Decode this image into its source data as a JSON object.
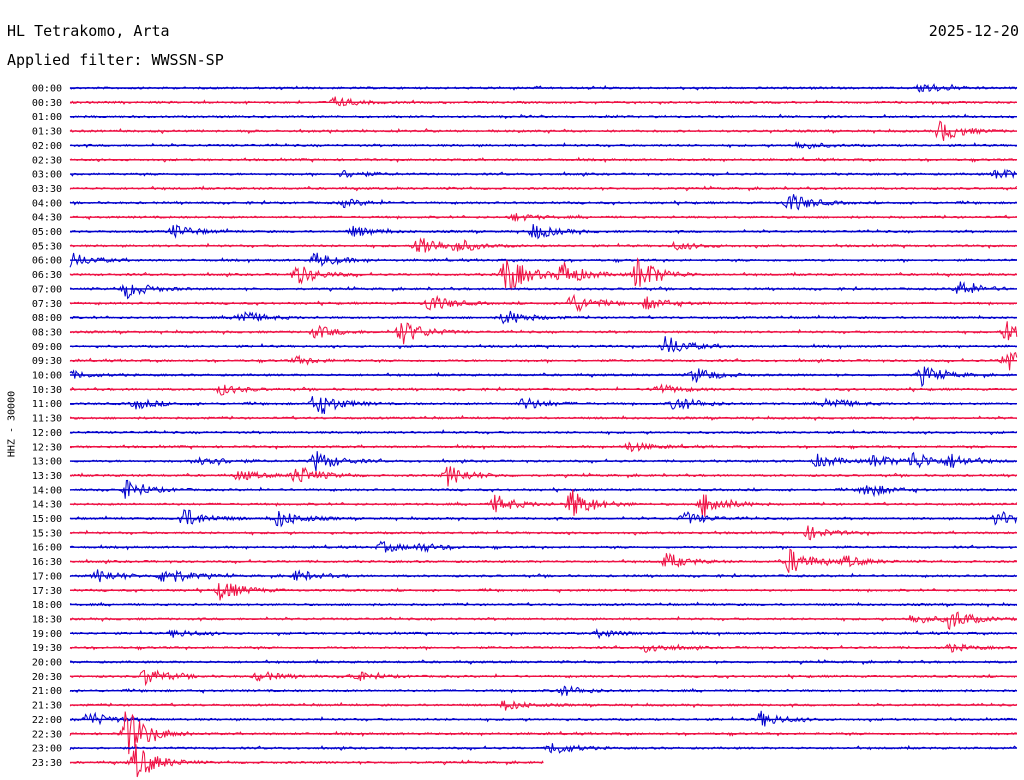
{
  "header": {
    "station": "HL Tetrakomo, Arta",
    "date": "2025-12-20",
    "filter": "Applied filter: WWSSN-SP",
    "channel_label": "HHZ - 30000"
  },
  "colors": {
    "even_trace": "#0000cc",
    "odd_trace": "#ee1144"
  },
  "chart_data": {
    "type": "line",
    "title": "HL Tetrakomo, Arta",
    "subtitle": "Applied filter: WWSSN-SP",
    "ylabel": "HHZ - 30000",
    "xlabel": "",
    "grid": false,
    "legend": "none",
    "row_labels": [
      "00:00",
      "00:30",
      "01:00",
      "01:30",
      "02:00",
      "02:30",
      "03:00",
      "03:30",
      "04:00",
      "04:30",
      "05:00",
      "05:30",
      "06:00",
      "06:30",
      "07:00",
      "07:30",
      "08:00",
      "08:30",
      "09:00",
      "09:30",
      "10:00",
      "10:30",
      "11:00",
      "11:30",
      "12:00",
      "12:30",
      "13:00",
      "13:30",
      "14:00",
      "14:30",
      "15:00",
      "15:30",
      "16:00",
      "16:30",
      "17:00",
      "17:30",
      "18:00",
      "18:30",
      "19:00",
      "19:30",
      "20:00",
      "20:30",
      "21:00",
      "21:30",
      "22:00",
      "22:30",
      "23:00",
      "23:30"
    ],
    "last_row_fraction": 0.5,
    "events": [
      {
        "row": 0,
        "t": 0.9,
        "amp": 0.45
      },
      {
        "row": 1,
        "t": 0.28,
        "amp": 0.4
      },
      {
        "row": 3,
        "t": 0.92,
        "amp": 0.8
      },
      {
        "row": 4,
        "t": 0.77,
        "amp": 0.3
      },
      {
        "row": 6,
        "t": 0.29,
        "amp": 0.3
      },
      {
        "row": 6,
        "t": 0.98,
        "amp": 0.45
      },
      {
        "row": 8,
        "t": 0.29,
        "amp": 0.3
      },
      {
        "row": 8,
        "t": 0.76,
        "amp": 0.8
      },
      {
        "row": 9,
        "t": 0.47,
        "amp": 0.3
      },
      {
        "row": 10,
        "t": 0.11,
        "amp": 0.5
      },
      {
        "row": 10,
        "t": 0.3,
        "amp": 0.4
      },
      {
        "row": 10,
        "t": 0.49,
        "amp": 0.6
      },
      {
        "row": 11,
        "t": 0.37,
        "amp": 0.9
      },
      {
        "row": 11,
        "t": 0.41,
        "amp": 0.4
      },
      {
        "row": 11,
        "t": 0.64,
        "amp": 0.3
      },
      {
        "row": 12,
        "t": 0.26,
        "amp": 0.6
      },
      {
        "row": 12,
        "t": 0.0,
        "amp": 0.6
      },
      {
        "row": 13,
        "t": 0.24,
        "amp": 0.8
      },
      {
        "row": 13,
        "t": 0.46,
        "amp": 1.6
      },
      {
        "row": 13,
        "t": 0.52,
        "amp": 1.0
      },
      {
        "row": 13,
        "t": 0.6,
        "amp": 1.4
      },
      {
        "row": 14,
        "t": 0.06,
        "amp": 0.7
      },
      {
        "row": 14,
        "t": 0.94,
        "amp": 0.6
      },
      {
        "row": 15,
        "t": 0.38,
        "amp": 0.7
      },
      {
        "row": 15,
        "t": 0.53,
        "amp": 0.8
      },
      {
        "row": 15,
        "t": 0.61,
        "amp": 0.5
      },
      {
        "row": 16,
        "t": 0.18,
        "amp": 0.6
      },
      {
        "row": 16,
        "t": 0.46,
        "amp": 0.6
      },
      {
        "row": 17,
        "t": 0.35,
        "amp": 1.0
      },
      {
        "row": 17,
        "t": 0.26,
        "amp": 0.5
      },
      {
        "row": 17,
        "t": 0.99,
        "amp": 0.8
      },
      {
        "row": 18,
        "t": 0.63,
        "amp": 0.8
      },
      {
        "row": 19,
        "t": 0.24,
        "amp": 0.3
      },
      {
        "row": 19,
        "t": 0.99,
        "amp": 1.2
      },
      {
        "row": 20,
        "t": 0.0,
        "amp": 0.3
      },
      {
        "row": 20,
        "t": 0.66,
        "amp": 0.6
      },
      {
        "row": 20,
        "t": 0.9,
        "amp": 0.7
      },
      {
        "row": 21,
        "t": 0.16,
        "amp": 0.4
      },
      {
        "row": 21,
        "t": 0.62,
        "amp": 0.4
      },
      {
        "row": 22,
        "t": 0.07,
        "amp": 0.4
      },
      {
        "row": 22,
        "t": 0.26,
        "amp": 1.0
      },
      {
        "row": 22,
        "t": 0.48,
        "amp": 0.5
      },
      {
        "row": 22,
        "t": 0.64,
        "amp": 0.6
      },
      {
        "row": 22,
        "t": 0.8,
        "amp": 0.5
      },
      {
        "row": 25,
        "t": 0.59,
        "amp": 0.4
      },
      {
        "row": 26,
        "t": 0.14,
        "amp": 0.5
      },
      {
        "row": 26,
        "t": 0.26,
        "amp": 0.8
      },
      {
        "row": 26,
        "t": 0.79,
        "amp": 0.5
      },
      {
        "row": 26,
        "t": 0.85,
        "amp": 0.5
      },
      {
        "row": 26,
        "t": 0.89,
        "amp": 0.7
      },
      {
        "row": 26,
        "t": 0.93,
        "amp": 0.5
      },
      {
        "row": 27,
        "t": 0.18,
        "amp": 0.4
      },
      {
        "row": 27,
        "t": 0.24,
        "amp": 0.8
      },
      {
        "row": 27,
        "t": 0.4,
        "amp": 0.8
      },
      {
        "row": 28,
        "t": 0.06,
        "amp": 0.7
      },
      {
        "row": 28,
        "t": 0.84,
        "amp": 0.6
      },
      {
        "row": 29,
        "t": 0.45,
        "amp": 0.7
      },
      {
        "row": 29,
        "t": 0.53,
        "amp": 1.2
      },
      {
        "row": 29,
        "t": 0.67,
        "amp": 1.0
      },
      {
        "row": 30,
        "t": 0.12,
        "amp": 0.8
      },
      {
        "row": 30,
        "t": 0.22,
        "amp": 0.7
      },
      {
        "row": 30,
        "t": 0.65,
        "amp": 0.5
      },
      {
        "row": 30,
        "t": 0.98,
        "amp": 0.6
      },
      {
        "row": 31,
        "t": 0.78,
        "amp": 0.5
      },
      {
        "row": 32,
        "t": 0.33,
        "amp": 0.4
      },
      {
        "row": 32,
        "t": 0.37,
        "amp": 0.3
      },
      {
        "row": 33,
        "t": 0.63,
        "amp": 0.6
      },
      {
        "row": 33,
        "t": 0.76,
        "amp": 1.0
      },
      {
        "row": 33,
        "t": 0.82,
        "amp": 0.4
      },
      {
        "row": 34,
        "t": 0.03,
        "amp": 0.5
      },
      {
        "row": 34,
        "t": 0.1,
        "amp": 0.8
      },
      {
        "row": 34,
        "t": 0.24,
        "amp": 0.4
      },
      {
        "row": 35,
        "t": 0.16,
        "amp": 0.8
      },
      {
        "row": 37,
        "t": 0.89,
        "amp": 0.4
      },
      {
        "row": 37,
        "t": 0.93,
        "amp": 0.8
      },
      {
        "row": 38,
        "t": 0.11,
        "amp": 0.3
      },
      {
        "row": 38,
        "t": 0.56,
        "amp": 0.3
      },
      {
        "row": 39,
        "t": 0.61,
        "amp": 0.4
      },
      {
        "row": 39,
        "t": 0.93,
        "amp": 0.3
      },
      {
        "row": 41,
        "t": 0.08,
        "amp": 0.7
      },
      {
        "row": 41,
        "t": 0.2,
        "amp": 0.4
      },
      {
        "row": 41,
        "t": 0.3,
        "amp": 0.4
      },
      {
        "row": 42,
        "t": 0.52,
        "amp": 0.4
      },
      {
        "row": 43,
        "t": 0.46,
        "amp": 0.4
      },
      {
        "row": 44,
        "t": 0.02,
        "amp": 0.6
      },
      {
        "row": 44,
        "t": 0.73,
        "amp": 0.6
      },
      {
        "row": 45,
        "t": 0.06,
        "amp": 1.9
      },
      {
        "row": 46,
        "t": 0.51,
        "amp": 0.5
      },
      {
        "row": 47,
        "t": 0.07,
        "amp": 1.4
      }
    ]
  }
}
